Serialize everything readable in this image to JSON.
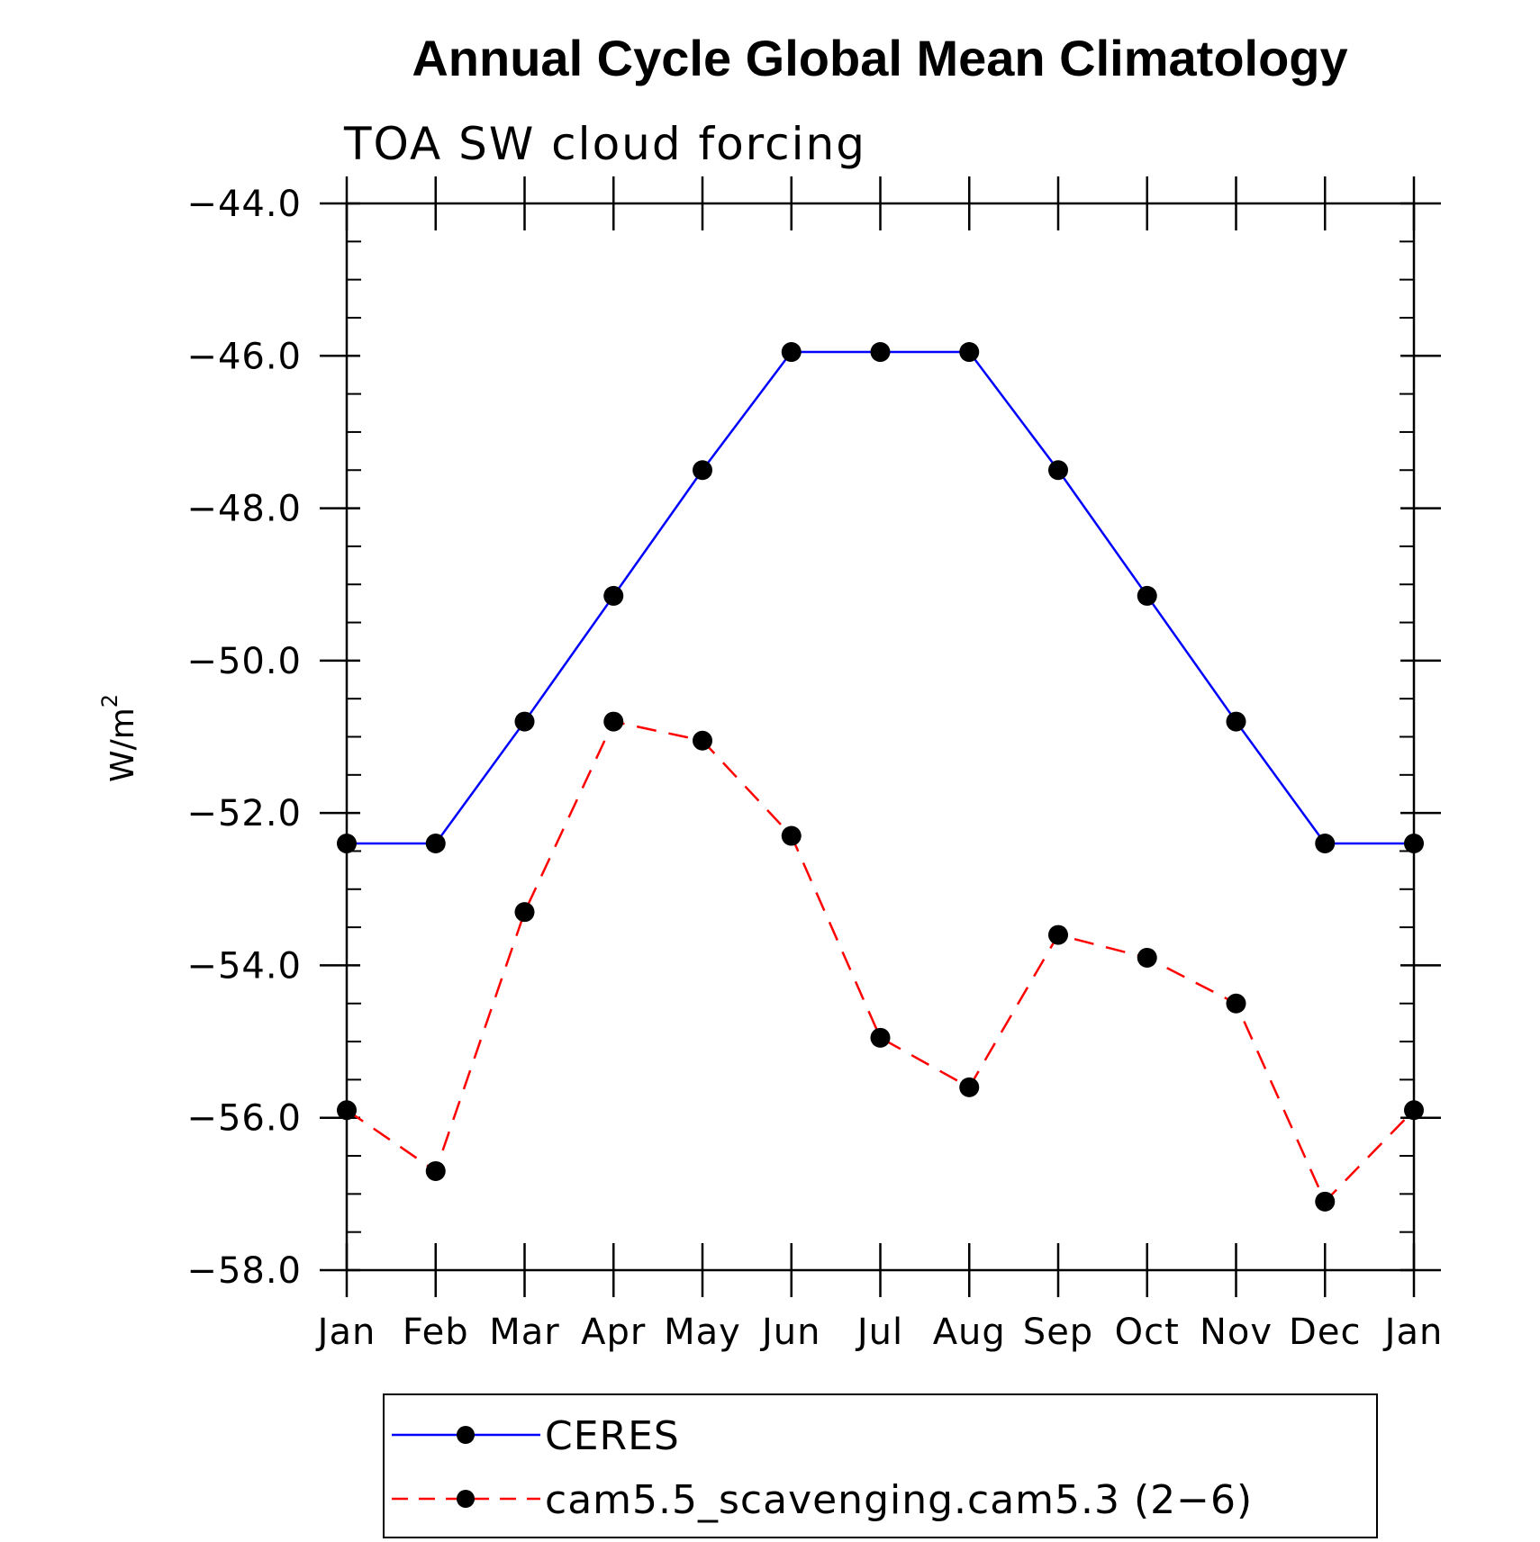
{
  "chart_data": {
    "type": "line",
    "title": "Annual Cycle Global Mean Climatology",
    "subtitle": "TOA SW cloud forcing",
    "ylabel": "W/m",
    "ylabel_sup": "2",
    "xlabel": "",
    "categories": [
      "Jan",
      "Feb",
      "Mar",
      "Apr",
      "May",
      "Jun",
      "Jul",
      "Aug",
      "Sep",
      "Oct",
      "Nov",
      "Dec",
      "Jan"
    ],
    "ylim": [
      -58.0,
      -44.0
    ],
    "yticks": [
      "−44.0",
      "−46.0",
      "−48.0",
      "−50.0",
      "−52.0",
      "−54.0",
      "−56.0",
      "−58.0"
    ],
    "ytick_values": [
      -44,
      -46,
      -48,
      -50,
      -52,
      -54,
      -56,
      -58
    ],
    "grid": false,
    "legend_position": "bottom",
    "series": [
      {
        "name": "CERES",
        "color": "#0000ff",
        "dash": "solid",
        "values": [
          -52.4,
          -52.4,
          -50.8,
          -49.15,
          -47.5,
          -45.95,
          -45.95,
          -45.95,
          -47.5,
          -49.15,
          -50.8,
          -52.4,
          -52.4
        ]
      },
      {
        "name": "cam5.5_scavenging.cam5.3 (2−6)",
        "color": "#ff0000",
        "dash": "dashed",
        "values": [
          -55.9,
          -56.7,
          -53.3,
          -50.8,
          -51.05,
          -52.3,
          -54.95,
          -55.6,
          -53.6,
          -53.9,
          -54.5,
          -57.1,
          -55.9
        ]
      }
    ]
  }
}
